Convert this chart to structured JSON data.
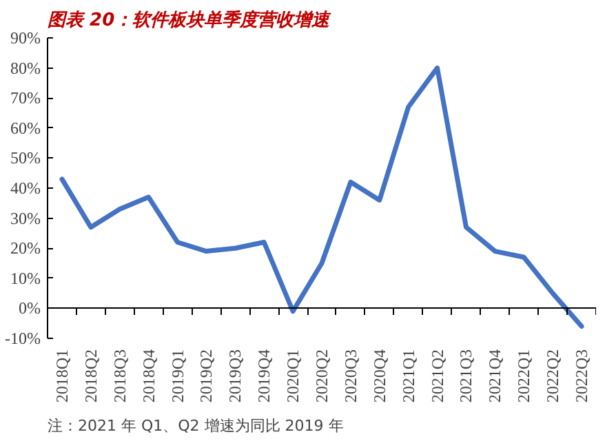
{
  "chart_data": {
    "type": "line",
    "title": "图表 20：软件板块单季度营收增速",
    "categories": [
      "2018Q1",
      "2018Q2",
      "2018Q3",
      "2018Q4",
      "2019Q1",
      "2019Q2",
      "2019Q3",
      "2019Q4",
      "2020Q1",
      "2020Q2",
      "2020Q3",
      "2020Q4",
      "2021Q1",
      "2021Q2",
      "2021Q3",
      "2021Q4",
      "2022Q1",
      "2022Q2",
      "2022Q3"
    ],
    "series": [
      {
        "color": "#4472c4",
        "values": [
          43,
          27,
          33,
          37,
          22,
          19,
          20,
          22,
          -1,
          15,
          42,
          36,
          67,
          80,
          27,
          19,
          17,
          5,
          -6
        ]
      }
    ],
    "ylim": [
      -10,
      90
    ],
    "yticks": [
      {
        "value": -10,
        "label": "-10%"
      },
      {
        "value": 0,
        "label": "0%"
      },
      {
        "value": 10,
        "label": "10%"
      },
      {
        "value": 20,
        "label": "20%"
      },
      {
        "value": 30,
        "label": "30%"
      },
      {
        "value": 40,
        "label": "40%"
      },
      {
        "value": 50,
        "label": "50%"
      },
      {
        "value": 60,
        "label": "60%"
      },
      {
        "value": 70,
        "label": "70%"
      },
      {
        "value": 80,
        "label": "80%"
      },
      {
        "value": 90,
        "label": "90%"
      }
    ],
    "grid": false,
    "marker": "none",
    "line_style": "solid",
    "annotations": [
      "注：2021 年 Q1、Q2 增速为同比 2019 年"
    ]
  }
}
